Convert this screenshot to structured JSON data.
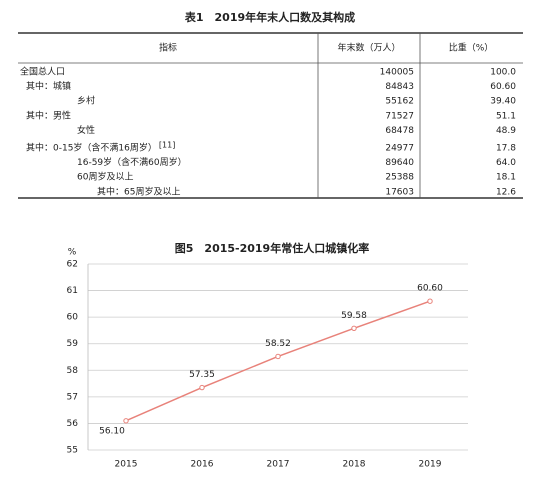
{
  "table": {
    "title": "表1　2019年年末人口数及其构成",
    "header": [
      "指标",
      "年末数（万人）",
      "比重（%）"
    ],
    "rows": [
      [
        "全国总人口",
        "140005",
        "100.0"
      ],
      [
        "其中：城镇",
        "84843",
        "60.60"
      ],
      [
        "乡村",
        "55162",
        "39.40"
      ],
      [
        "其中：男性",
        "71527",
        "51.1"
      ],
      [
        "女性",
        "68478",
        "48.9"
      ],
      [
        "其中：0-15岁（含不满16周岁）",
        "24977",
        "17.8"
      ],
      [
        "16-59岁（含不满60周岁）",
        "89640",
        "64.0"
      ],
      [
        "60周岁及以上",
        "25388",
        "18.1"
      ],
      [
        "其中：65周岁及以上",
        "17603",
        "12.6"
      ]
    ],
    "footnote_marker": "[11]"
  },
  "chart_data": {
    "type": "line",
    "title": "图5　2015-2019年常住人口城镇化率",
    "y_label": "%",
    "categories": [
      "2015",
      "2016",
      "2017",
      "2018",
      "2019"
    ],
    "series": [
      {
        "name": "城镇化率",
        "color": "#e8827a",
        "values": [
          56.1,
          57.35,
          58.52,
          59.58,
          60.6
        ],
        "value_labels": [
          "56.10",
          "57.35",
          "58.52",
          "59.58",
          "60.60"
        ]
      }
    ],
    "ylim": [
      55,
      62
    ],
    "yticks": [
      55,
      56,
      57,
      58,
      59,
      60,
      61,
      62
    ],
    "grid": true
  }
}
